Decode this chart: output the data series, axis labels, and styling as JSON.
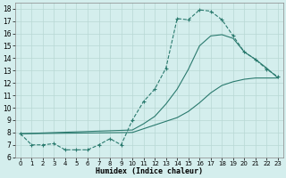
{
  "xlabel": "Humidex (Indice chaleur)",
  "xlim": [
    -0.5,
    23.5
  ],
  "ylim": [
    6,
    18.5
  ],
  "yticks": [
    6,
    7,
    8,
    9,
    10,
    11,
    12,
    13,
    14,
    15,
    16,
    17,
    18
  ],
  "xticks": [
    0,
    1,
    2,
    3,
    4,
    5,
    6,
    7,
    8,
    9,
    10,
    11,
    12,
    13,
    14,
    15,
    16,
    17,
    18,
    19,
    20,
    21,
    22,
    23
  ],
  "bg_color": "#d4eeed",
  "line_color": "#2a7a6e",
  "grid_color": "#b8d8d4",
  "series": [
    {
      "x": [
        0,
        1,
        2,
        3,
        4,
        5,
        6,
        7,
        8,
        9,
        10,
        11,
        12,
        13,
        14,
        15,
        16,
        17,
        18,
        19,
        20,
        21,
        22,
        23
      ],
      "y": [
        7.9,
        7.0,
        7.0,
        7.1,
        6.6,
        6.6,
        6.6,
        7.0,
        7.5,
        7.0,
        9.0,
        10.5,
        11.5,
        13.2,
        17.2,
        17.1,
        17.9,
        17.8,
        17.1,
        15.8,
        14.5,
        13.9,
        13.1,
        12.5
      ],
      "marker": "+",
      "dashed": true
    },
    {
      "x": [
        0,
        10,
        11,
        12,
        13,
        14,
        15,
        16,
        17,
        18,
        19,
        20,
        21,
        22,
        23
      ],
      "y": [
        7.9,
        8.0,
        8.3,
        8.6,
        8.9,
        9.2,
        9.7,
        10.4,
        11.2,
        11.8,
        12.1,
        12.3,
        12.4,
        12.4,
        12.4
      ],
      "marker": null,
      "dashed": false
    },
    {
      "x": [
        0,
        10,
        11,
        12,
        13,
        14,
        15,
        16,
        17,
        18,
        19,
        20,
        21,
        22,
        23
      ],
      "y": [
        7.9,
        8.2,
        8.7,
        9.3,
        10.3,
        11.5,
        13.1,
        15.0,
        15.8,
        15.9,
        15.6,
        14.5,
        13.9,
        13.2,
        12.4
      ],
      "marker": null,
      "dashed": false
    }
  ]
}
